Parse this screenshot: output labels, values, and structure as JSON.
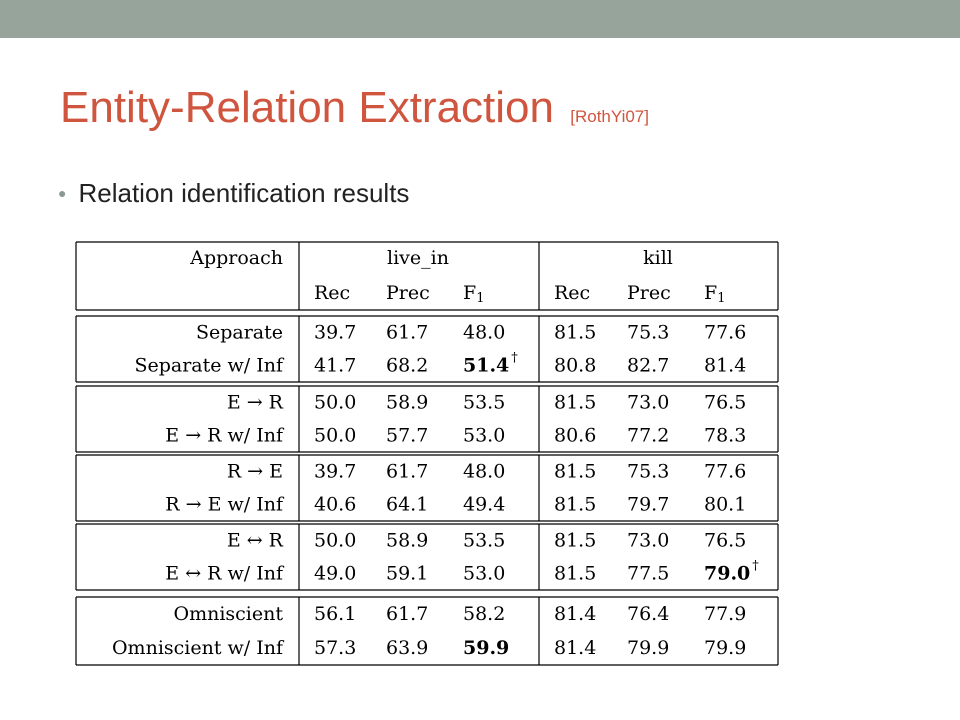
{
  "slide": {
    "title": "Entity-Relation Extraction",
    "citation": "[RothYi07]",
    "bullet_text": "Relation identification results",
    "accent_color": "#d0553f",
    "topbar_color": "#97a49b"
  },
  "table": {
    "approach_header": "Approach",
    "groups": [
      "live_in",
      "kill"
    ],
    "columns": [
      "Rec",
      "Prec",
      "F1"
    ],
    "sections": [
      [
        {
          "approach": "Separate",
          "values": [
            "39.7",
            "61.7",
            "48.0",
            "81.5",
            "75.3",
            "77.6"
          ],
          "bold": [],
          "dagger": []
        },
        {
          "approach": "Separate w/ Inf",
          "values": [
            "41.7",
            "68.2",
            "51.4",
            "80.8",
            "82.7",
            "81.4"
          ],
          "bold": [
            2
          ],
          "dagger": [
            2
          ]
        }
      ],
      [
        {
          "approach": "E → R",
          "values": [
            "50.0",
            "58.9",
            "53.5",
            "81.5",
            "73.0",
            "76.5"
          ],
          "bold": [],
          "dagger": []
        },
        {
          "approach": "E → R w/ Inf",
          "values": [
            "50.0",
            "57.7",
            "53.0",
            "80.6",
            "77.2",
            "78.3"
          ],
          "bold": [],
          "dagger": []
        }
      ],
      [
        {
          "approach": "R → E",
          "values": [
            "39.7",
            "61.7",
            "48.0",
            "81.5",
            "75.3",
            "77.6"
          ],
          "bold": [],
          "dagger": []
        },
        {
          "approach": "R → E w/ Inf",
          "values": [
            "40.6",
            "64.1",
            "49.4",
            "81.5",
            "79.7",
            "80.1"
          ],
          "bold": [],
          "dagger": []
        }
      ],
      [
        {
          "approach": "E ↔ R",
          "values": [
            "50.0",
            "58.9",
            "53.5",
            "81.5",
            "73.0",
            "76.5"
          ],
          "bold": [],
          "dagger": []
        },
        {
          "approach": "E ↔ R w/ Inf",
          "values": [
            "49.0",
            "59.1",
            "53.0",
            "81.5",
            "77.5",
            "79.0"
          ],
          "bold": [
            5
          ],
          "dagger": [
            5
          ]
        }
      ],
      [
        {
          "approach": "Omniscient",
          "values": [
            "56.1",
            "61.7",
            "58.2",
            "81.4",
            "76.4",
            "77.9"
          ],
          "bold": [],
          "dagger": []
        },
        {
          "approach": "Omniscient w/ Inf",
          "values": [
            "57.3",
            "63.9",
            "59.9",
            "81.4",
            "79.9",
            "79.9"
          ],
          "bold": [
            2
          ],
          "dagger": []
        }
      ]
    ]
  }
}
